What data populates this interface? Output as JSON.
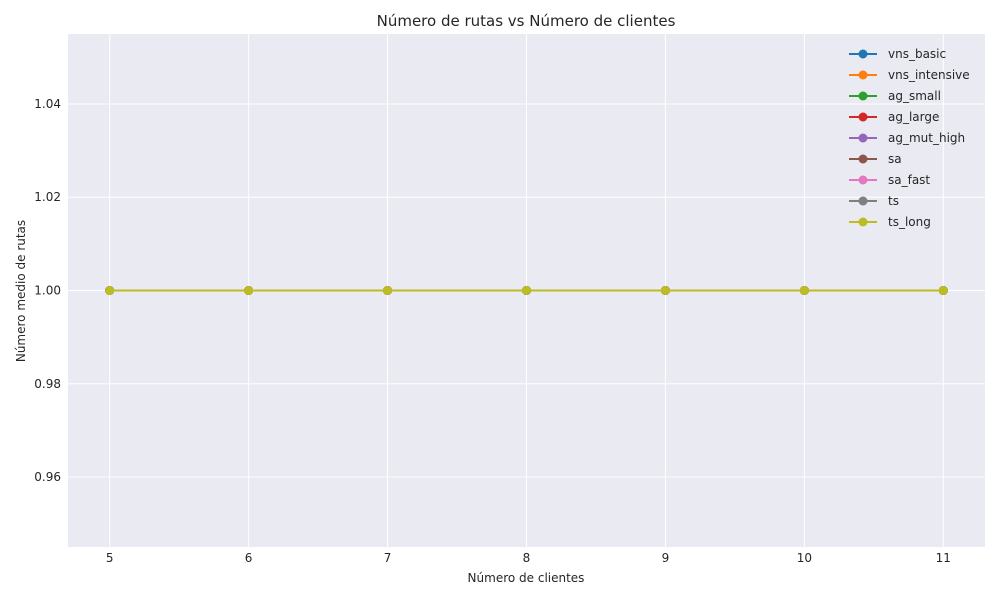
{
  "chart_data": {
    "type": "line",
    "title": "Número de rutas vs Número de clientes",
    "xlabel": "Número de clientes",
    "ylabel": "Número medio de rutas",
    "x": [
      5,
      6,
      7,
      8,
      9,
      10,
      11
    ],
    "xlim": [
      4.7,
      11.3
    ],
    "ylim": [
      0.945,
      1.055
    ],
    "xticks": [
      "5",
      "6",
      "7",
      "8",
      "9",
      "10",
      "11"
    ],
    "yticks": [
      "0.96",
      "0.98",
      "1.00",
      "1.02",
      "1.04"
    ],
    "ytick_values": [
      0.96,
      0.98,
      1.0,
      1.02,
      1.04
    ],
    "grid": true,
    "legend_position": "top-right",
    "series": [
      {
        "name": "vns_basic",
        "color": "#1f77b4",
        "values": [
          1,
          1,
          1,
          1,
          1,
          1,
          1
        ]
      },
      {
        "name": "vns_intensive",
        "color": "#ff7f0e",
        "values": [
          1,
          1,
          1,
          1,
          1,
          1,
          1
        ]
      },
      {
        "name": "ag_small",
        "color": "#2ca02c",
        "values": [
          1,
          1,
          1,
          1,
          1,
          1,
          1
        ]
      },
      {
        "name": "ag_large",
        "color": "#d62728",
        "values": [
          1,
          1,
          1,
          1,
          1,
          1,
          1
        ]
      },
      {
        "name": "ag_mut_high",
        "color": "#9467bd",
        "values": [
          1,
          1,
          1,
          1,
          1,
          1,
          1
        ]
      },
      {
        "name": "sa",
        "color": "#8c564b",
        "values": [
          1,
          1,
          1,
          1,
          1,
          1,
          1
        ]
      },
      {
        "name": "sa_fast",
        "color": "#e377c2",
        "values": [
          1,
          1,
          1,
          1,
          1,
          1,
          1
        ]
      },
      {
        "name": "ts",
        "color": "#7f7f7f",
        "values": [
          1,
          1,
          1,
          1,
          1,
          1,
          1
        ]
      },
      {
        "name": "ts_long",
        "color": "#bcbd22",
        "values": [
          1,
          1,
          1,
          1,
          1,
          1,
          1
        ]
      }
    ]
  }
}
